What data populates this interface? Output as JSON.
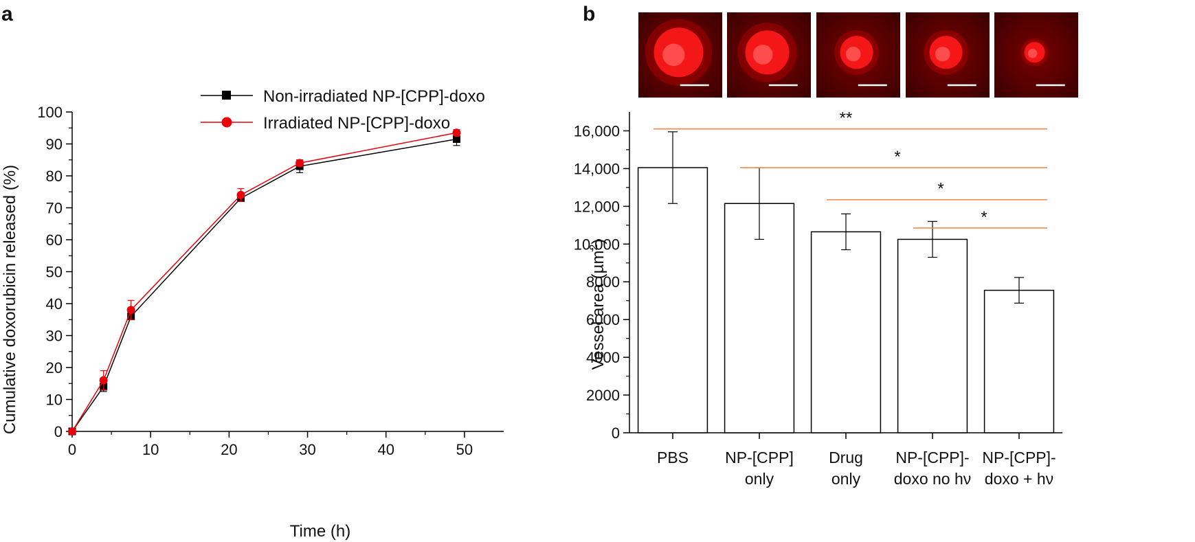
{
  "figure": {
    "panel_a_letter": "a",
    "panel_b_letter": "b"
  },
  "colors": {
    "series_black": "#000000",
    "series_red": "#e8000b",
    "significance": "#f08a4b",
    "micrograph_red": "#d00000"
  },
  "micrographs": {
    "count": 5,
    "has_scale_bar": true
  },
  "chart_data": [
    {
      "type": "line",
      "panel": "a",
      "xlabel": "Time (h)",
      "ylabel": "Cumulative doxorubicin released (%)",
      "xlim": [
        0,
        55
      ],
      "ylim": [
        0,
        100
      ],
      "x_ticks": [
        "0",
        "10",
        "20",
        "30",
        "40",
        "50"
      ],
      "y_ticks": [
        "0",
        "10",
        "20",
        "30",
        "40",
        "50",
        "60",
        "70",
        "80",
        "90",
        "100"
      ],
      "legend_position": "top-right",
      "grid": false,
      "series": [
        {
          "name": "Non-irradiated NP-[CPP]-doxo",
          "color": "#000000",
          "marker": "square",
          "x": [
            0,
            4,
            7.5,
            21.5,
            29,
            49
          ],
          "y": [
            0,
            14,
            36,
            73,
            83,
            91.5
          ],
          "err": [
            0,
            1.5,
            1,
            0.8,
            2,
            2
          ]
        },
        {
          "name": "Irradiated NP-[CPP]-doxo",
          "color": "#e8000b",
          "marker": "circle",
          "x": [
            0,
            4,
            7.5,
            21.5,
            29,
            49
          ],
          "y": [
            0,
            16,
            38,
            74,
            84,
            93.5
          ],
          "err": [
            0,
            3,
            3,
            2,
            1,
            1
          ]
        }
      ]
    },
    {
      "type": "bar",
      "panel": "b",
      "ylabel": "Vessel area (µm²)",
      "ylabel_main": "Vessel area (µm",
      "ylabel_sup": "2",
      "ylabel_end": ")",
      "ylim": [
        0,
        17000
      ],
      "y_ticks": [
        "0",
        "2000",
        "4000",
        "6000",
        "8000",
        "10,000",
        "12,000",
        "14,000",
        "16,000"
      ],
      "grid": false,
      "categories": [
        [
          "PBS"
        ],
        [
          "NP-[CPP]",
          "only"
        ],
        [
          "Drug",
          "only"
        ],
        [
          "NP-[CPP]-",
          "doxo no hν"
        ],
        [
          "NP-[CPP]-",
          "doxo + hν"
        ]
      ],
      "values": [
        14050,
        12150,
        10650,
        10250,
        7550
      ],
      "err": [
        1900,
        1900,
        950,
        950,
        680
      ],
      "significance": [
        {
          "label": "**",
          "from": 0,
          "to": 4,
          "y": 16100
        },
        {
          "label": "*",
          "from": 1,
          "to": 4,
          "y": 14050
        },
        {
          "label": "*",
          "from": 2,
          "to": 4,
          "y": 12350
        },
        {
          "label": "*",
          "from": 3,
          "to": 4,
          "y": 10850
        }
      ]
    }
  ]
}
